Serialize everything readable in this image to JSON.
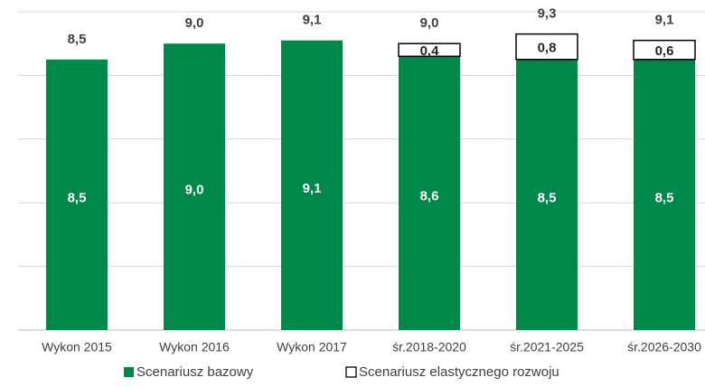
{
  "chart_data": {
    "type": "stacked_bar",
    "categories": [
      "Wykon 2015",
      "Wykon 2016",
      "Wykon 2017",
      "śr.2018-2020",
      "śr.2021-2025",
      "śr.2026-2030"
    ],
    "series": [
      {
        "name": "Scenariusz bazowy",
        "color": "#00874a",
        "values": [
          8.5,
          9.0,
          9.1,
          8.6,
          8.5,
          8.5
        ],
        "value_labels": [
          "8,5",
          "9,0",
          "9,1",
          "8,6",
          "8,5",
          "8,5"
        ]
      },
      {
        "name": "Scenariusz elastycznego rozwoju",
        "color": "#ffffff",
        "values": [
          null,
          null,
          null,
          0.4,
          0.8,
          0.6
        ],
        "value_labels": [
          null,
          null,
          null,
          "0,4",
          "0,8",
          "0,6"
        ]
      }
    ],
    "totals": {
      "values": [
        8.5,
        9.0,
        9.1,
        9.0,
        9.3,
        9.1
      ],
      "value_labels": [
        "8,5",
        "9,0",
        "9,1",
        "9,0",
        "9,3",
        "9,1"
      ]
    },
    "ylim": [
      0,
      10
    ],
    "yticks": [
      0,
      2,
      4,
      6,
      8,
      10
    ],
    "grid": true,
    "legend": "bottom"
  }
}
